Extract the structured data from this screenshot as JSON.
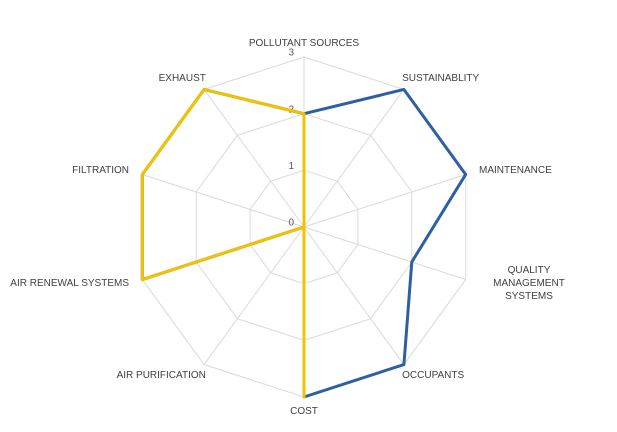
{
  "chart_data": {
    "type": "radar",
    "categories": [
      "POLLUTANT SOURCES",
      "SUSTAINABLITY",
      "MAINTENANCE",
      "QUALITY MANAGEMENT SYSTEMS",
      "OCCUPANTS",
      "COST",
      "AIR PURIFICATION",
      "AIR RENEWAL SYSTEMS",
      "FILTRATION",
      "EXHAUST"
    ],
    "series": [
      {
        "color": "#2e5fa3",
        "values": [
          2,
          3,
          3,
          2,
          3,
          3,
          0,
          3,
          3,
          3
        ]
      },
      {
        "color": "#f2c200",
        "values": [
          2,
          0,
          0,
          0,
          0,
          3,
          0,
          3,
          3,
          3
        ]
      }
    ],
    "ylim": [
      0,
      3
    ],
    "yticks": [
      0,
      1,
      2,
      3
    ],
    "grid": true
  }
}
